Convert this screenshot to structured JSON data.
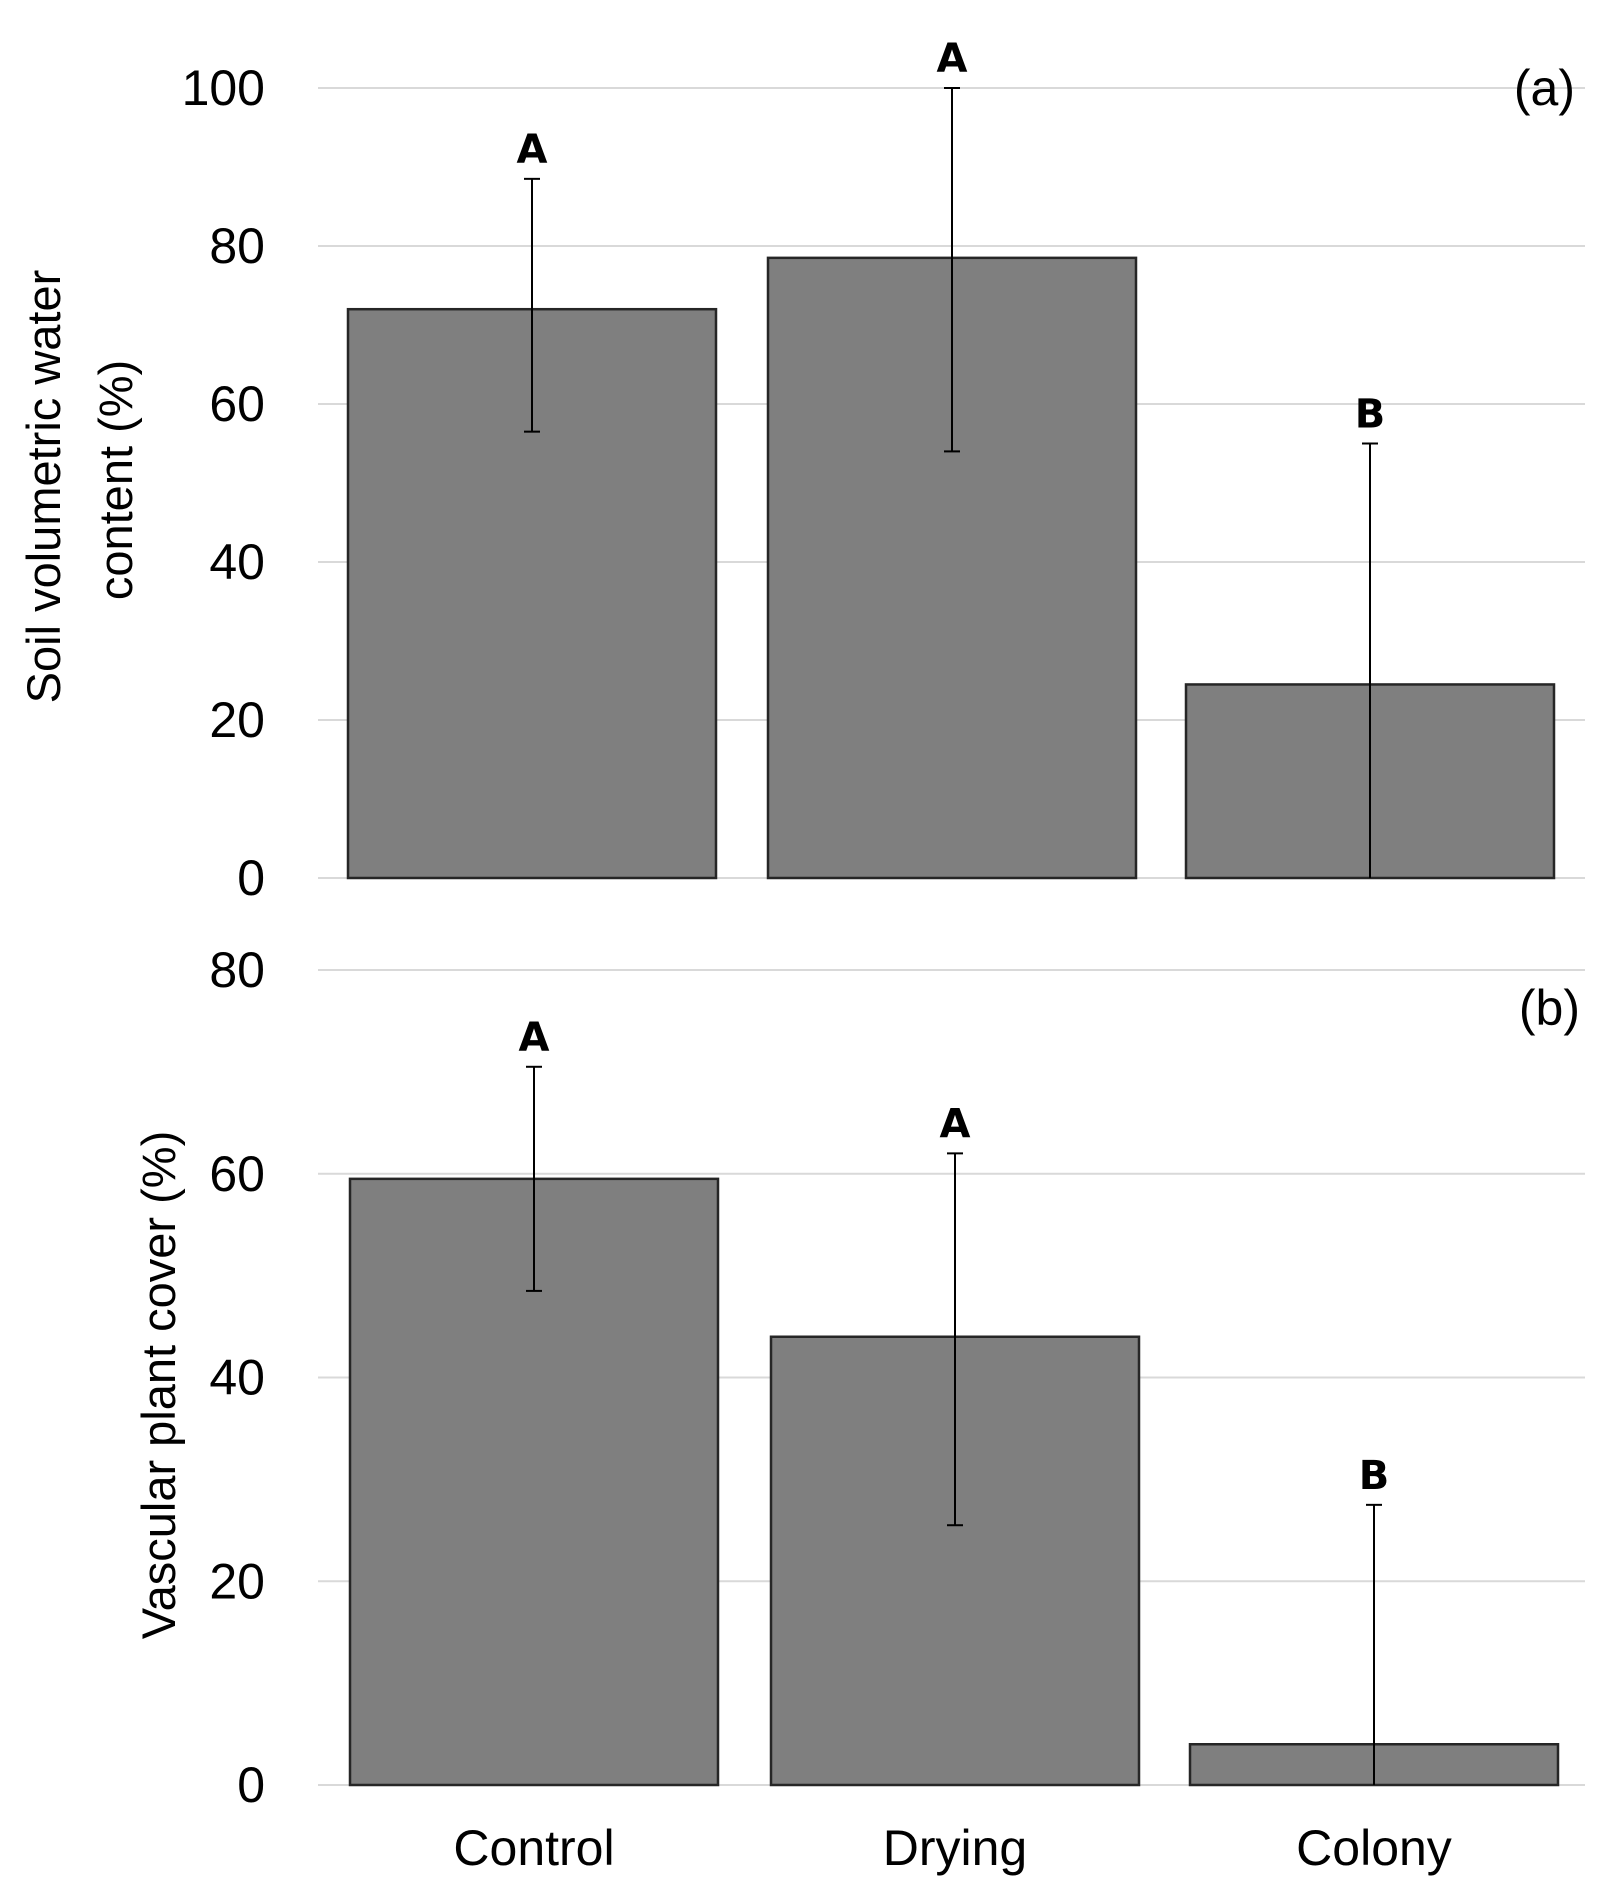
{
  "colors": {
    "bar_fill": "#7f7f7f",
    "bar_stroke": "#262626",
    "grid": "#d9d9d9",
    "error_bar": "#000000"
  },
  "chart_data": [
    {
      "type": "bar",
      "panel_label": "(a)",
      "categories": [
        "Control",
        "Drying",
        "Colony"
      ],
      "values": [
        72,
        78.5,
        24.5
      ],
      "error_low": [
        56.5,
        54,
        0
      ],
      "error_high": [
        88.5,
        100,
        55
      ],
      "significance": [
        "A",
        "A",
        "B"
      ],
      "xlabel": "",
      "ylabel": "Soil volumetric water content (%)",
      "ylabel_lines": [
        "Soil volumetric water",
        "content (%)"
      ],
      "ylim": [
        0,
        100
      ],
      "yticks": [
        0,
        20,
        40,
        60,
        80,
        100
      ],
      "grid": true
    },
    {
      "type": "bar",
      "panel_label": "(b)",
      "categories": [
        "Control",
        "Drying",
        "Colony"
      ],
      "values": [
        59.5,
        44,
        4
      ],
      "error_low": [
        48.5,
        25.5,
        0
      ],
      "error_high": [
        70.5,
        62,
        27.5
      ],
      "significance": [
        "A",
        "A",
        "B"
      ],
      "xlabel": "",
      "ylabel": "Vascular plant cover (%)",
      "ylim": [
        0,
        80
      ],
      "yticks": [
        0,
        20,
        40,
        60,
        80
      ],
      "grid": true
    }
  ]
}
